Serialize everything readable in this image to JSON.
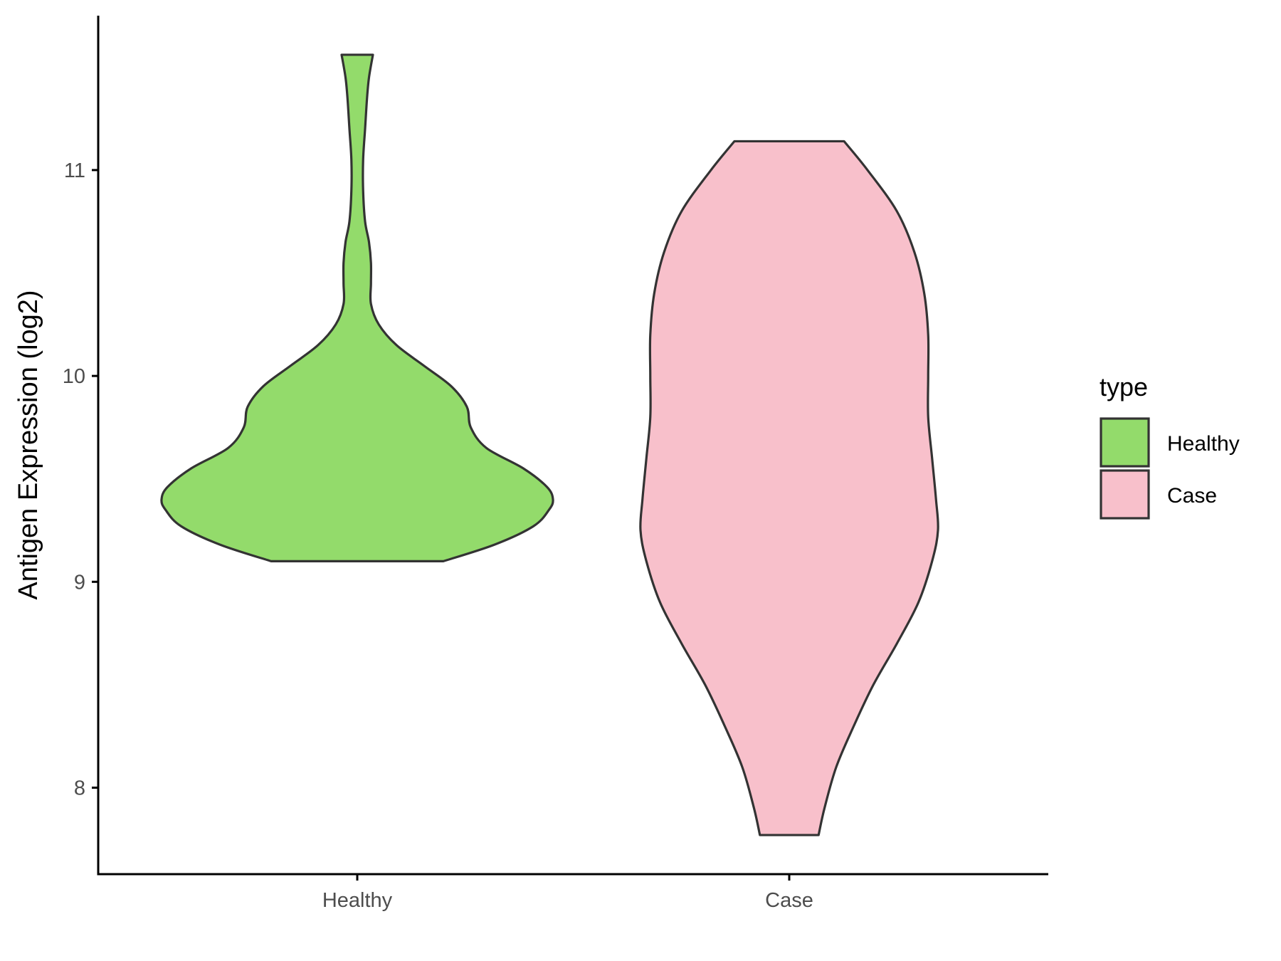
{
  "chart_data": {
    "type": "violin",
    "ylabel": "Antigen Expression (log2)",
    "xlabel": "",
    "categories": [
      "Healthy",
      "Case"
    ],
    "ylim": [
      7.58,
      11.75
    ],
    "yticks": [
      8,
      9,
      10,
      11
    ],
    "grid": false,
    "legend": {
      "title": "type",
      "position": "right",
      "entries": [
        {
          "label": "Healthy",
          "color": "#93DB6B"
        },
        {
          "label": "Case",
          "color": "#F8C0CB"
        }
      ]
    },
    "series": [
      {
        "name": "Healthy",
        "color": "#93DB6B",
        "min": 9.1,
        "max": 11.56,
        "density_profile": [
          [
            9.1,
            0.44
          ],
          [
            9.18,
            0.7
          ],
          [
            9.27,
            0.9
          ],
          [
            9.35,
            0.98
          ],
          [
            9.4,
            1.0
          ],
          [
            9.46,
            0.97
          ],
          [
            9.55,
            0.85
          ],
          [
            9.65,
            0.66
          ],
          [
            9.75,
            0.58
          ],
          [
            9.85,
            0.56
          ],
          [
            9.95,
            0.48
          ],
          [
            10.05,
            0.34
          ],
          [
            10.15,
            0.2
          ],
          [
            10.25,
            0.11
          ],
          [
            10.35,
            0.07
          ],
          [
            10.45,
            0.07
          ],
          [
            10.55,
            0.07
          ],
          [
            10.65,
            0.06
          ],
          [
            10.75,
            0.04
          ],
          [
            10.9,
            0.03
          ],
          [
            11.05,
            0.03
          ],
          [
            11.2,
            0.04
          ],
          [
            11.35,
            0.05
          ],
          [
            11.45,
            0.06
          ],
          [
            11.56,
            0.08
          ]
        ]
      },
      {
        "name": "Case",
        "color": "#F8C0CB",
        "min": 7.77,
        "max": 11.14,
        "density_profile": [
          [
            7.77,
            0.15
          ],
          [
            7.9,
            0.18
          ],
          [
            8.1,
            0.24
          ],
          [
            8.3,
            0.33
          ],
          [
            8.5,
            0.43
          ],
          [
            8.7,
            0.55
          ],
          [
            8.9,
            0.66
          ],
          [
            9.1,
            0.73
          ],
          [
            9.25,
            0.76
          ],
          [
            9.4,
            0.75
          ],
          [
            9.6,
            0.73
          ],
          [
            9.8,
            0.71
          ],
          [
            10.0,
            0.71
          ],
          [
            10.2,
            0.71
          ],
          [
            10.4,
            0.69
          ],
          [
            10.6,
            0.64
          ],
          [
            10.8,
            0.55
          ],
          [
            11.0,
            0.4
          ],
          [
            11.14,
            0.28
          ]
        ]
      }
    ]
  }
}
